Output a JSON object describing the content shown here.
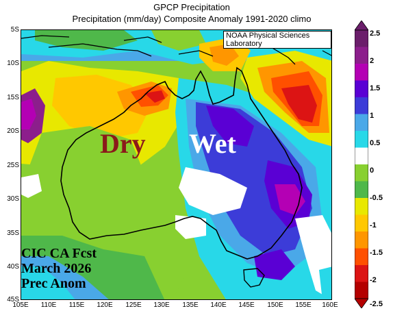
{
  "title_line1": "GPCP Precipitation",
  "title_line2": "Precipitation (mm/day) Composite Anomaly 1991-2020 climo",
  "credit": "NOAA Physical Sciences Laboratory",
  "lat_labels": [
    "5S",
    "10S",
    "15S",
    "20S",
    "25S",
    "30S",
    "35S",
    "40S",
    "45S"
  ],
  "lon_labels": [
    "105E",
    "110E",
    "115E",
    "120E",
    "125E",
    "130E",
    "135E",
    "140E",
    "145E",
    "150E",
    "155E",
    "160E"
  ],
  "annotations": {
    "dry": "Dry",
    "wet": "Wet"
  },
  "footer": {
    "line1": "CIC CA Fcst",
    "line2": "March 2026",
    "line3": "Prec Anom"
  },
  "colorbar": {
    "labels": [
      "2.5",
      "2",
      "1.5",
      "1",
      "0.5",
      "0",
      "-0.5",
      "-1",
      "-1.5",
      "-2",
      "-2.5"
    ],
    "colors": [
      "#6b1e6b",
      "#8c1e8c",
      "#b400b4",
      "#5a00d4",
      "#3c3cd8",
      "#4aa8e8",
      "#28d8e8",
      "#ffffff",
      "#88d030",
      "#4fb84a",
      "#e8e800",
      "#ffc800",
      "#ff9600",
      "#ff5000",
      "#dc1414",
      "#b40000"
    ]
  }
}
